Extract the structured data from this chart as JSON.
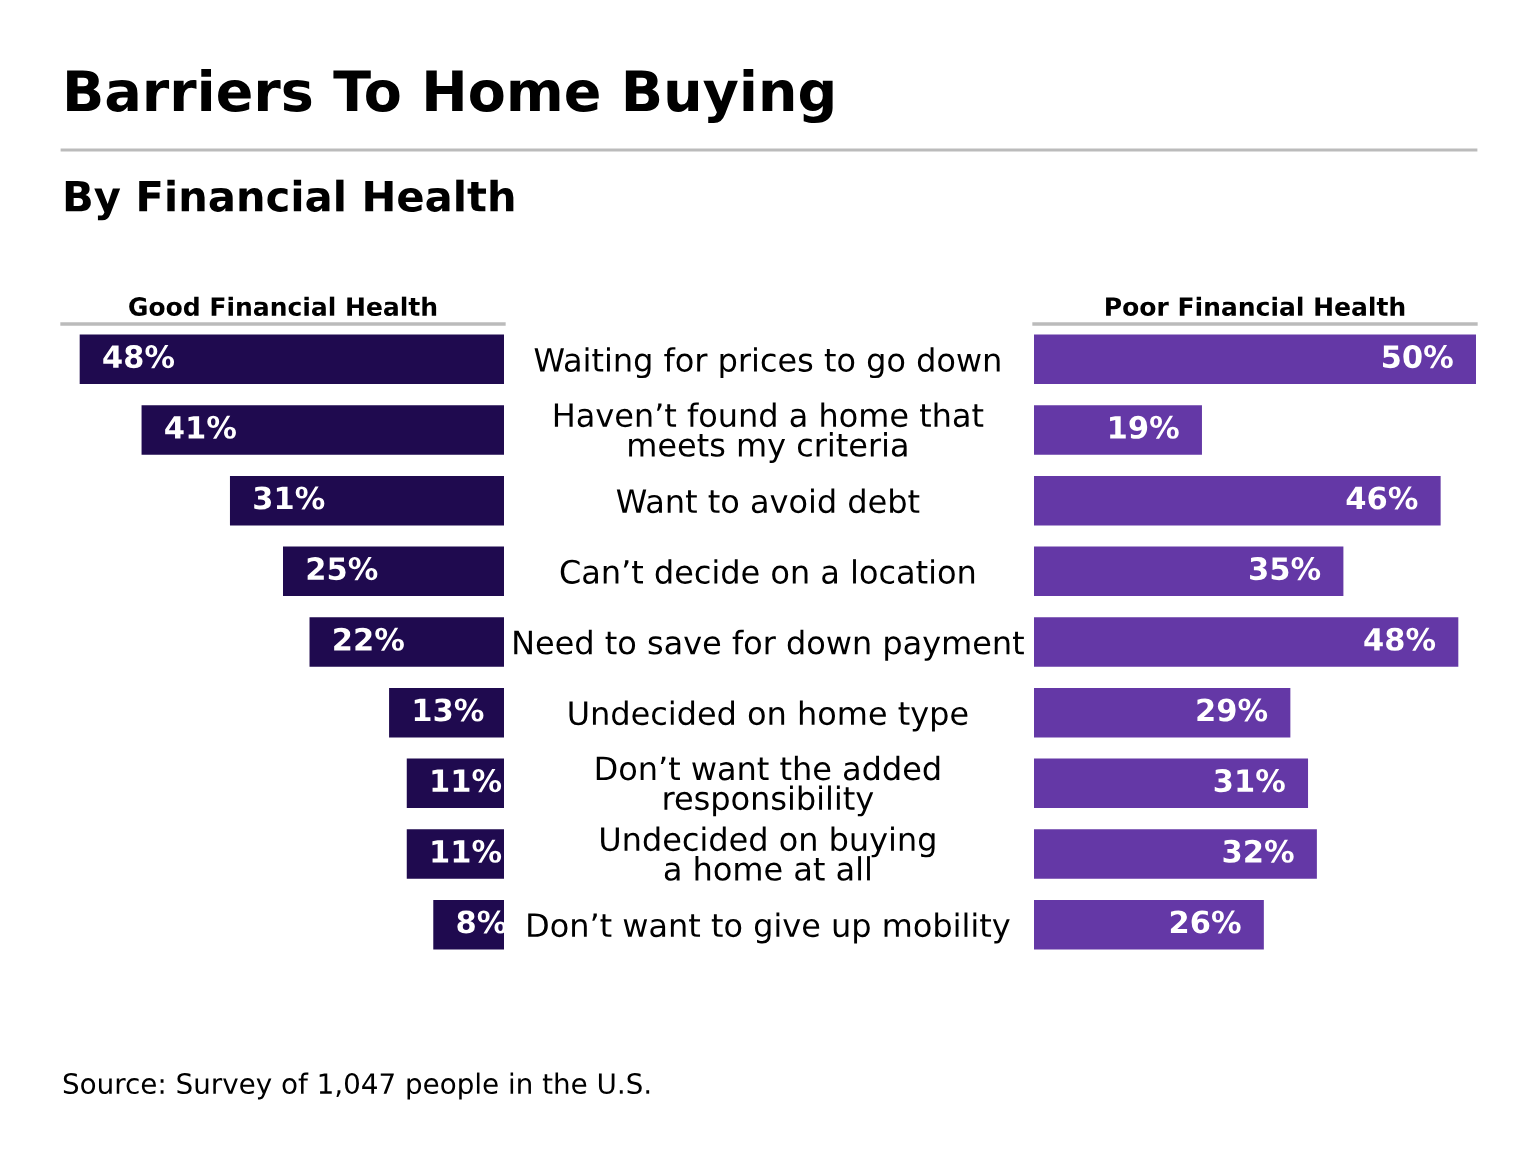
{
  "chart_data": [
    {
      "type": "bar",
      "orientation": "horizontal",
      "title": "Barriers To Home Buying",
      "subtitle": "By Financial Health",
      "xlabel": "Good Financial Health",
      "categories": [
        "Waiting for prices to go down",
        "Haven’t found a home that\nmeets my criteria",
        "Want to avoid debt",
        "Can’t decide on a location",
        "Need to save for down payment",
        "Undecided on home type",
        "Don’t want the added\nresponsibility",
        "Undecided on buying\na home at all",
        "Don’t want to give up mobility"
      ],
      "values": [
        48,
        41,
        31,
        25,
        22,
        13,
        11,
        11,
        8
      ],
      "value_labels": [
        "48%",
        "41%",
        "31%",
        "25%",
        "22%",
        "13%",
        "11%",
        "11%",
        "8%"
      ],
      "color": "#1f0a4f",
      "annotations": [
        "Source: Survey of 1,047 people in the U.S."
      ]
    },
    {
      "type": "bar",
      "orientation": "horizontal",
      "xlabel": "Poor Financial Health",
      "categories": [
        null,
        null,
        null,
        null,
        null,
        null,
        null,
        null,
        null
      ],
      "values": [
        50,
        19,
        46,
        35,
        48,
        29,
        31,
        32,
        26
      ],
      "value_labels": [
        "50%",
        "19%",
        "46%",
        "35%",
        "48%",
        "29%",
        "31%",
        "32%",
        "26%"
      ],
      "color": "#6438a6"
    }
  ]
}
